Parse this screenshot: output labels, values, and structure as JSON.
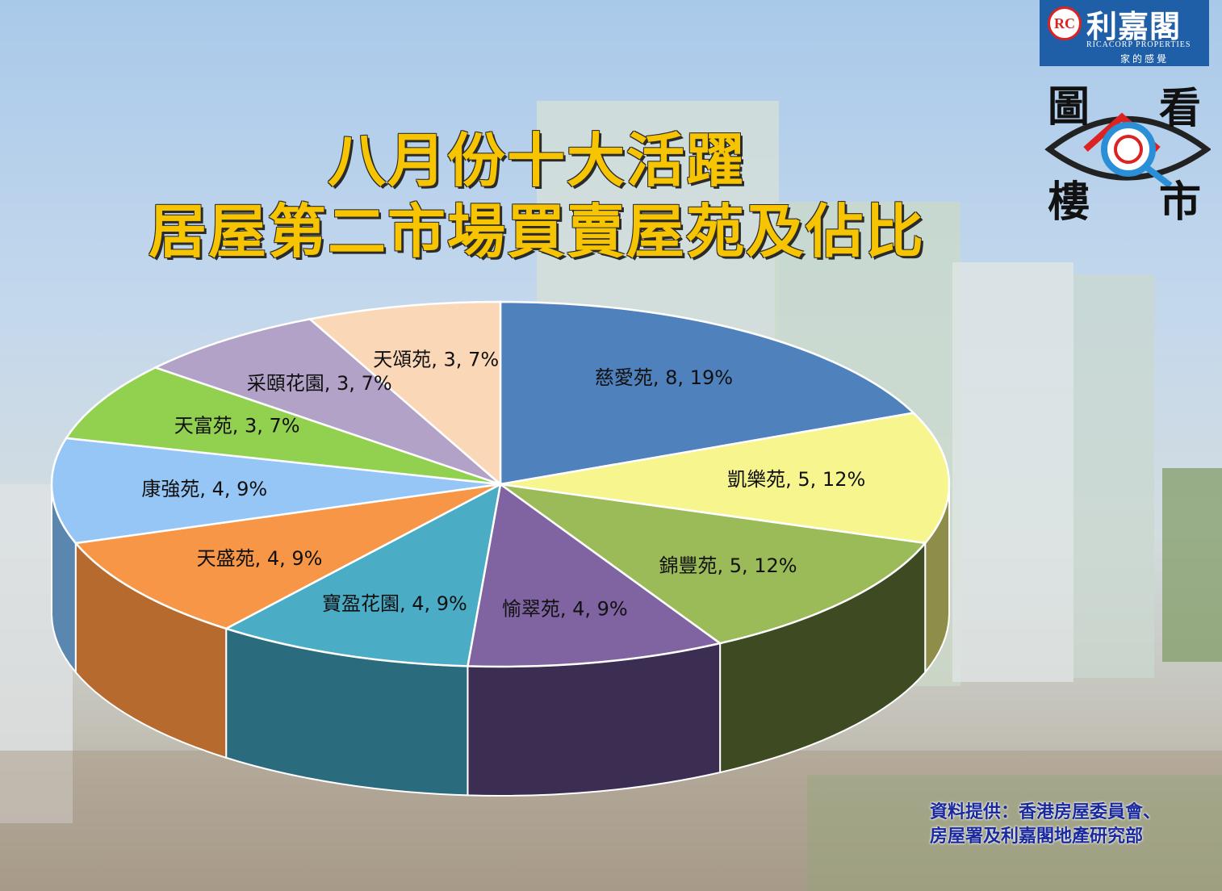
{
  "title": {
    "line1": "八月份十大活躍",
    "line2": "居屋第二市場買賣屋苑及佔比"
  },
  "logo": {
    "mark": "RC",
    "name_cn": "利嘉閣",
    "name_en": "RICACORP PROPERTIES",
    "slogan": "家的感覺"
  },
  "badge": {
    "chars": [
      "圖",
      "看",
      "樓",
      "市"
    ]
  },
  "source": {
    "line1": "資料提供：香港房屋委員會、",
    "line2": "房屋署及利嘉閣地產研究部"
  },
  "chart_data": {
    "type": "pie",
    "title": "八月份十大活躍居屋第二市場買賣屋苑及佔比",
    "slices": [
      {
        "label": "慈愛苑",
        "value": 8,
        "percent": 19,
        "text": "慈愛苑, 8, 19%",
        "color": "#4f81bd",
        "side": "#2f4d73"
      },
      {
        "label": "凱樂苑",
        "value": 5,
        "percent": 12,
        "text": "凱樂苑, 5, 12%",
        "color": "#f7f58e",
        "side": "#8f8d4a"
      },
      {
        "label": "錦豐苑",
        "value": 5,
        "percent": 12,
        "text": "錦豐苑, 5, 12%",
        "color": "#9bbb59",
        "side": "#3d4a22"
      },
      {
        "label": "愉翠苑",
        "value": 4,
        "percent": 9,
        "text": "愉翠苑, 4, 9%",
        "color": "#8064a2",
        "side": "#3b2e52"
      },
      {
        "label": "寶盈花園",
        "value": 4,
        "percent": 9,
        "text": "寶盈花園, 4, 9%",
        "color": "#4bacc6",
        "side": "#2a6b7d"
      },
      {
        "label": "天盛苑",
        "value": 4,
        "percent": 9,
        "text": "天盛苑, 4, 9%",
        "color": "#f79646",
        "side": "#b66a2e"
      },
      {
        "label": "康強苑",
        "value": 4,
        "percent": 9,
        "text": "康強苑, 4, 9%",
        "color": "#95c6f5",
        "side": "#5a86b0"
      },
      {
        "label": "天富苑",
        "value": 3,
        "percent": 7,
        "text": "天富苑, 3, 7%",
        "color": "#92d050",
        "side": "#5c8a2e"
      },
      {
        "label": "采頤花園",
        "value": 3,
        "percent": 7,
        "text": "采頤花園, 3, 7%",
        "color": "#b3a2c7",
        "side": "#6e6182"
      },
      {
        "label": "天頌苑",
        "value": 3,
        "percent": 7,
        "text": "天頌苑, 3, 7%",
        "color": "#fad7b7",
        "side": "#b8967a"
      }
    ]
  }
}
